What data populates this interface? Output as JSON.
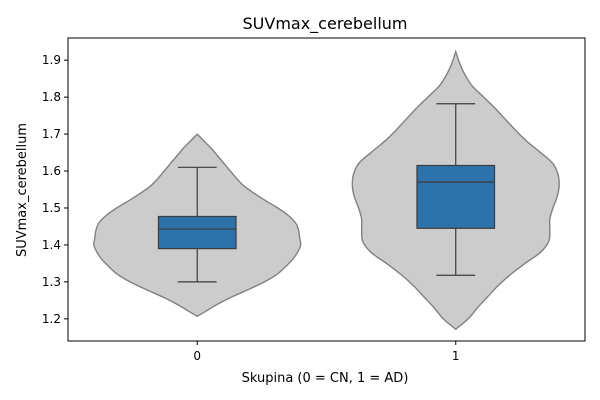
{
  "chart_data": {
    "type": "violin",
    "title": "SUVmax_cerebellum",
    "xlabel": "Skupina (0 = CN, 1 = AD)",
    "ylabel": "SUVmax_cerebellum",
    "categories": [
      "0",
      "1"
    ],
    "ylim": [
      1.14,
      1.96
    ],
    "yticks": [
      "1.2",
      "1.3",
      "1.4",
      "1.5",
      "1.6",
      "1.7",
      "1.8",
      "1.9"
    ],
    "grid": false,
    "colors": {
      "violin_fill": "#cccccc",
      "violin_edge": "#808080",
      "box_fill": "#2e72ab",
      "box_edge": "#3b3b3b",
      "axes": "#000000"
    },
    "series": [
      {
        "category": "0",
        "box": {
          "whisker_low": 1.3,
          "q1": 1.39,
          "median": 1.443,
          "q3": 1.477,
          "whisker_high": 1.61
        },
        "violin": {
          "y": [
            1.207,
            1.22,
            1.24,
            1.26,
            1.28,
            1.3,
            1.32,
            1.34,
            1.36,
            1.38,
            1.4,
            1.42,
            1.44,
            1.46,
            1.48,
            1.5,
            1.52,
            1.54,
            1.56,
            1.58,
            1.6,
            1.62,
            1.64,
            1.66,
            1.68,
            1.7
          ],
          "density": [
            0.0,
            0.08,
            0.2,
            0.34,
            0.5,
            0.65,
            0.77,
            0.85,
            0.92,
            0.97,
            1.0,
            0.99,
            0.98,
            0.95,
            0.88,
            0.78,
            0.66,
            0.55,
            0.45,
            0.38,
            0.32,
            0.26,
            0.2,
            0.14,
            0.07,
            0.0
          ]
        }
      },
      {
        "category": "1",
        "box": {
          "whisker_low": 1.318,
          "q1": 1.445,
          "median": 1.57,
          "q3": 1.615,
          "whisker_high": 1.782
        },
        "violin": {
          "y": [
            1.172,
            1.2,
            1.23,
            1.26,
            1.29,
            1.32,
            1.35,
            1.38,
            1.41,
            1.44,
            1.47,
            1.5,
            1.53,
            1.56,
            1.59,
            1.62,
            1.65,
            1.68,
            1.71,
            1.74,
            1.77,
            1.8,
            1.83,
            1.86,
            1.89,
            1.923
          ],
          "density": [
            0.0,
            0.12,
            0.21,
            0.31,
            0.41,
            0.53,
            0.67,
            0.82,
            0.9,
            0.91,
            0.91,
            0.94,
            0.98,
            1.0,
            0.99,
            0.94,
            0.82,
            0.69,
            0.58,
            0.48,
            0.38,
            0.27,
            0.16,
            0.09,
            0.04,
            0.0
          ]
        }
      }
    ]
  }
}
